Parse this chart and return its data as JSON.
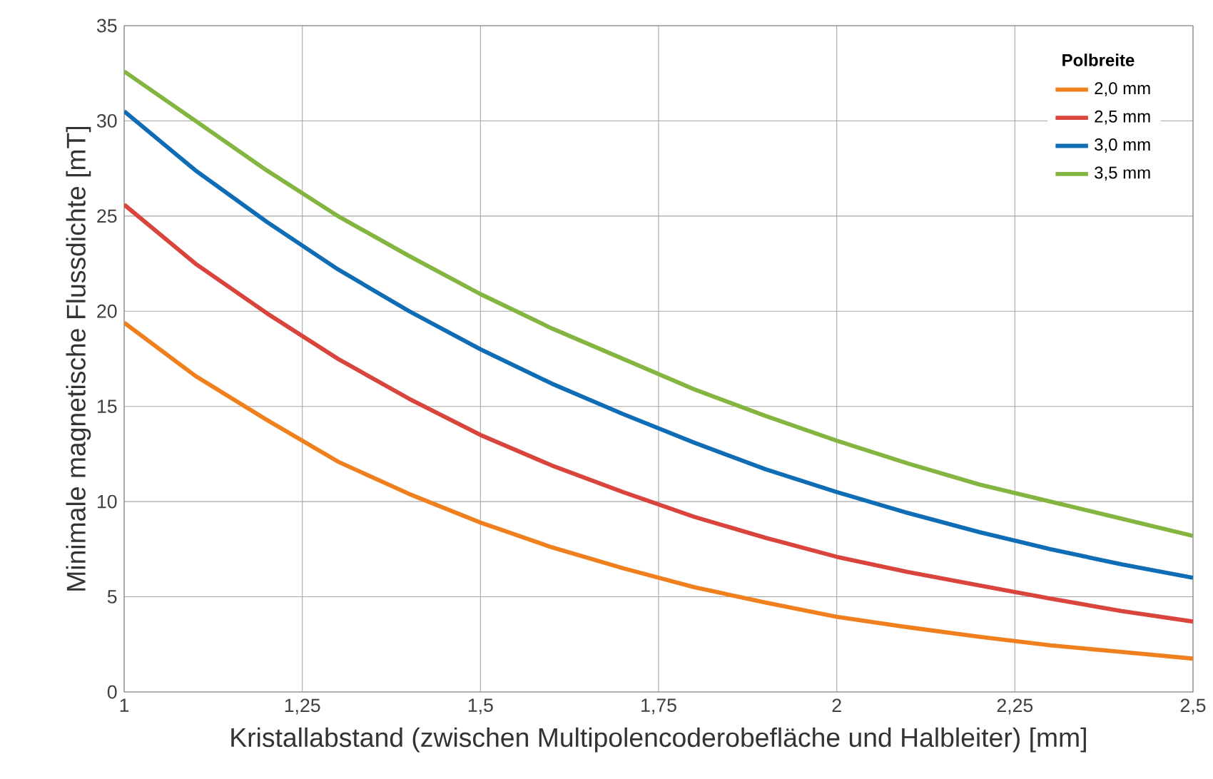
{
  "chart_data": {
    "type": "line",
    "xlabel": "Kristallabstand (zwischen Multipolencoderobefläche und Halbleiter) [mm]",
    "ylabel": "Minimale magnetische Flussdichte [mT]",
    "legend_title": "Polbreite",
    "x": [
      1.0,
      1.1,
      1.2,
      1.3,
      1.4,
      1.5,
      1.6,
      1.7,
      1.8,
      1.9,
      2.0,
      2.1,
      2.2,
      2.3,
      2.4,
      2.5
    ],
    "series": [
      {
        "name": "2,0 mm",
        "color": "#f07f1e",
        "values": [
          19.4,
          16.6,
          14.3,
          12.1,
          10.4,
          8.9,
          7.6,
          6.5,
          5.5,
          4.7,
          3.95,
          3.4,
          2.9,
          2.45,
          2.1,
          1.75
        ]
      },
      {
        "name": "2,5 mm",
        "color": "#d9453c",
        "values": [
          25.6,
          22.5,
          19.9,
          17.5,
          15.4,
          13.5,
          11.9,
          10.5,
          9.2,
          8.1,
          7.1,
          6.3,
          5.6,
          4.9,
          4.25,
          3.7
        ]
      },
      {
        "name": "3,0 mm",
        "color": "#0f6db5",
        "values": [
          30.5,
          27.4,
          24.7,
          22.2,
          20.0,
          18.0,
          16.2,
          14.6,
          13.1,
          11.7,
          10.5,
          9.4,
          8.4,
          7.5,
          6.7,
          6.0
        ]
      },
      {
        "name": "3,5 mm",
        "color": "#84b540",
        "values": [
          32.6,
          30.0,
          27.4,
          25.0,
          22.9,
          20.9,
          19.1,
          17.5,
          15.9,
          14.5,
          13.2,
          12.0,
          10.9,
          10.0,
          9.1,
          8.2
        ]
      }
    ],
    "xlim": [
      1,
      2.5
    ],
    "xticks": [
      {
        "value": 1,
        "label": "1"
      },
      {
        "value": 1.25,
        "label": "1,25"
      },
      {
        "value": 1.5,
        "label": "1,5"
      },
      {
        "value": 1.75,
        "label": "1,75"
      },
      {
        "value": 2,
        "label": "2"
      },
      {
        "value": 2.25,
        "label": "2,25"
      },
      {
        "value": 2.5,
        "label": "2,5"
      }
    ],
    "ylim": [
      0,
      35
    ],
    "yticks": [
      0,
      5,
      10,
      15,
      20,
      25,
      30,
      35
    ],
    "grid": true,
    "legend": "top right",
    "marker": "none",
    "line_style": "solid"
  }
}
